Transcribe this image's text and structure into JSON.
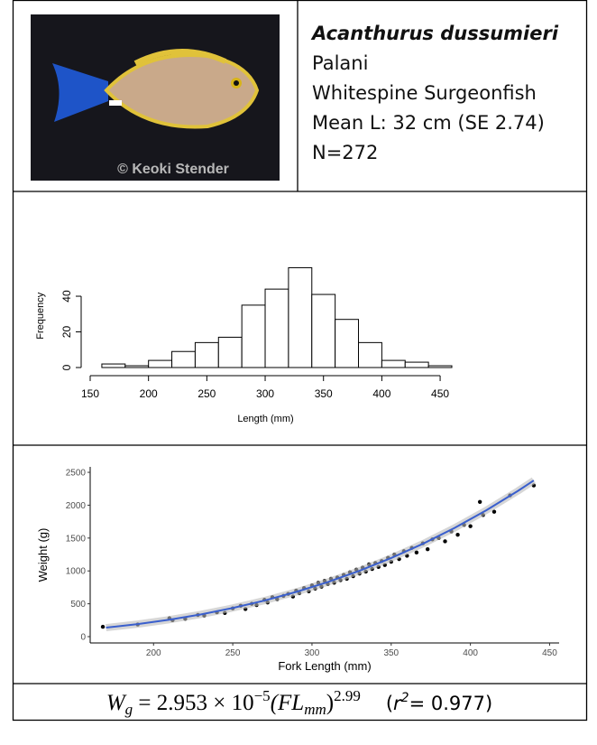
{
  "species": {
    "scientific_name": "Acanthurus dussumieri",
    "local_name": "Palani",
    "common_name": "Whitespine Surgeonfish",
    "mean_length": "Mean L: 32 cm (SE 2.74)",
    "sample_size": "N=272",
    "photo_credit": "© Keoki Stender"
  },
  "chart_data": [
    {
      "type": "histogram",
      "x_label": "Length (mm)",
      "y_label": "Frequency",
      "bins": [
        160,
        180,
        200,
        220,
        240,
        260,
        280,
        300,
        320,
        340,
        360,
        380,
        400,
        420,
        440,
        460
      ],
      "counts": [
        2,
        1,
        4,
        9,
        14,
        17,
        35,
        44,
        56,
        41,
        27,
        14,
        4,
        3,
        1
      ],
      "xlim": [
        150,
        460
      ],
      "ylim": [
        0,
        58
      ],
      "xticks": [
        150,
        200,
        250,
        300,
        350,
        400,
        450
      ],
      "yticks": [
        0,
        20,
        40
      ]
    },
    {
      "type": "scatter",
      "x_label": "Fork Length (mm)",
      "y_label": "Weight (g)",
      "xlim": [
        160,
        456
      ],
      "ylim": [
        -96,
        2583
      ],
      "xticks": [
        200,
        250,
        300,
        350,
        400,
        450
      ],
      "yticks": [
        0,
        500,
        1000,
        1500,
        2000,
        2500
      ],
      "series": [
        {
          "color": "#000000",
          "x": [
            168,
            190,
            210,
            212,
            220,
            228,
            232,
            240,
            245,
            250,
            255,
            258,
            262,
            265,
            270,
            272,
            275,
            278,
            282,
            285,
            288,
            290,
            292,
            295,
            298,
            300,
            302,
            304,
            306,
            308,
            310,
            312,
            314,
            316,
            318,
            320,
            322,
            324,
            326,
            328,
            330,
            332,
            334,
            336,
            338,
            340,
            342,
            344,
            346,
            348,
            350,
            352,
            355,
            358,
            360,
            363,
            366,
            370,
            373,
            376,
            380,
            384,
            388,
            392,
            396,
            400,
            406,
            408,
            415,
            425,
            440
          ],
          "values": [
            150,
            185,
            280,
            250,
            270,
            330,
            320,
            370,
            360,
            430,
            470,
            420,
            500,
            480,
            560,
            520,
            600,
            570,
            620,
            650,
            610,
            700,
            660,
            740,
            690,
            780,
            730,
            820,
            760,
            850,
            800,
            880,
            820,
            900,
            860,
            940,
            880,
            980,
            920,
            1020,
            960,
            1050,
            990,
            1100,
            1030,
            1120,
            1060,
            1150,
            1090,
            1200,
            1140,
            1250,
            1180,
            1300,
            1230,
            1350,
            1280,
            1420,
            1330,
            1480,
            1500,
            1450,
            1600,
            1550,
            1700,
            1680,
            2050,
            1850,
            1900,
            2150,
            2300
          ]
        },
        {
          "color": "#3a5fcd",
          "fit": true,
          "x": [
            170,
            190,
            210,
            230,
            250,
            270,
            290,
            310,
            330,
            350,
            370,
            390,
            410,
            430,
            440
          ],
          "values": [
            137,
            191,
            258,
            339,
            436,
            549,
            680,
            831,
            1002,
            1196,
            1413,
            1654,
            1922,
            2217,
            2376
          ]
        }
      ]
    }
  ],
  "formula": {
    "w": "W",
    "w_sub": "g",
    "equation": " = 2.953 × 10",
    "exponent": "−5",
    "fl_open": "(FL",
    "fl_sub": "mm",
    "fl_close": ")",
    "power": "2.99",
    "r2_open": "(",
    "r2_symbol": "r",
    "r2_sup": "2",
    "r2_value": "= 0.977)"
  }
}
